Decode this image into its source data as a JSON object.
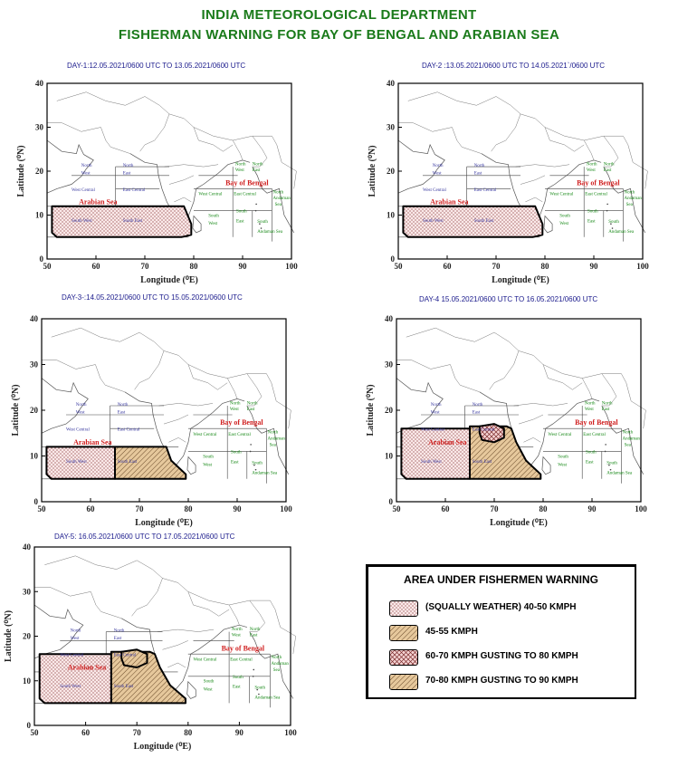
{
  "header": {
    "line1": "INDIA METEOROLOGICAL DEPARTMENT",
    "line2": "FISHERMAN WARNING FOR BAY OF  BENGAL AND ARABIAN SEA"
  },
  "axes": {
    "ylabel": "Latitude (⁰N)",
    "xlabel": "Longitude (⁰E)",
    "x_ticks": [
      "50",
      "60",
      "70",
      "80",
      "90",
      "100"
    ],
    "y_ticks": [
      "0",
      "10",
      "20",
      "30",
      "40"
    ]
  },
  "regions": {
    "north_west": [
      "North",
      "West"
    ],
    "north_east": [
      "North",
      "East"
    ],
    "west_central": "West Central",
    "east_central": "East Central",
    "south_west": "South West",
    "south_east": "South East",
    "arabian_sea": "Arabian Sea",
    "bay_of_bengal": "Bay of Bengal",
    "bob_north_west": [
      "North",
      "West"
    ],
    "bob_north_east": [
      "North",
      "East"
    ],
    "bob_west_central": "West Central",
    "bob_east_central": "East Central",
    "bob_south_west": [
      "South",
      "West"
    ],
    "bob_south_east": [
      "South",
      "East"
    ],
    "andaman": [
      "North",
      "Andaman",
      "Sea"
    ],
    "andaman_south": [
      "South",
      "Andaman Sea"
    ]
  },
  "days": [
    {
      "label": "DAY-1:12.05.2021/0600 UTC TO  13.05.2021/0600 UTC",
      "warnings": [
        {
          "zone": "arabian_south",
          "category": "squally_40_50"
        }
      ]
    },
    {
      "label": "DAY-2 :13.05.2021/0600 UTC TO  14.05.2021`/0600 UTC",
      "warnings": [
        {
          "zone": "arabian_south",
          "category": "squally_40_50"
        }
      ]
    },
    {
      "label": "DAY-3-:14.05.2021/0600 UTC TO  15.05.2021/0600 UTC",
      "warnings": [
        {
          "zone": "arabian_south_west",
          "category": "squally_40_50"
        },
        {
          "zone": "arabian_south_east",
          "category": "gale_45_55"
        }
      ]
    },
    {
      "label": "DAY-4 15.05.2021/0600 UTC TO  16.05.2021/0600 UTC",
      "warnings": [
        {
          "zone": "arabian_south_west_and_west_central",
          "category": "squally_40_50"
        },
        {
          "zone": "arabian_east_central_and_south_east",
          "category": "gale_45_55"
        },
        {
          "zone": "cyclone_core",
          "category": "gale_60_70"
        }
      ]
    },
    {
      "label": "DAY-5:  16.05.2021/0600 UTC TO  17.05.2021/0600 UTC",
      "warnings": [
        {
          "zone": "arabian_south_west_and_west_central",
          "category": "squally_40_50"
        },
        {
          "zone": "arabian_east_central_and_south_east",
          "category": "gale_45_55"
        },
        {
          "zone": "cyclone_core",
          "category": "gale_70_80"
        }
      ]
    }
  ],
  "legend": {
    "title": "AREA UNDER FISHERMEN WARNING",
    "items": [
      {
        "key": "squally_40_50",
        "label": "(SQUALLY  WEATHER)  40-50 KMPH",
        "fill": "dots",
        "color": "#e8a0a0"
      },
      {
        "key": "gale_45_55",
        "label": "45-55 KMPH",
        "fill": "hatch",
        "color": "#e0c49a"
      },
      {
        "key": "gale_60_70",
        "label": "60-70 KMPH GUSTING TO 80 KMPH",
        "fill": "crosshatch",
        "color": "#e8a0a0"
      },
      {
        "key": "gale_70_80",
        "label": "70-80 KMPH GUSTING TO 90 KMPH",
        "fill": "hatch",
        "color": "#e0c49a"
      }
    ]
  },
  "colors": {
    "title": "#1a7a1a",
    "day_label": "#1a1a8c",
    "sea_label": "#d02020",
    "arabian_region_text": "#3a3aa0",
    "bengal_region_text": "#1a8a1a"
  }
}
